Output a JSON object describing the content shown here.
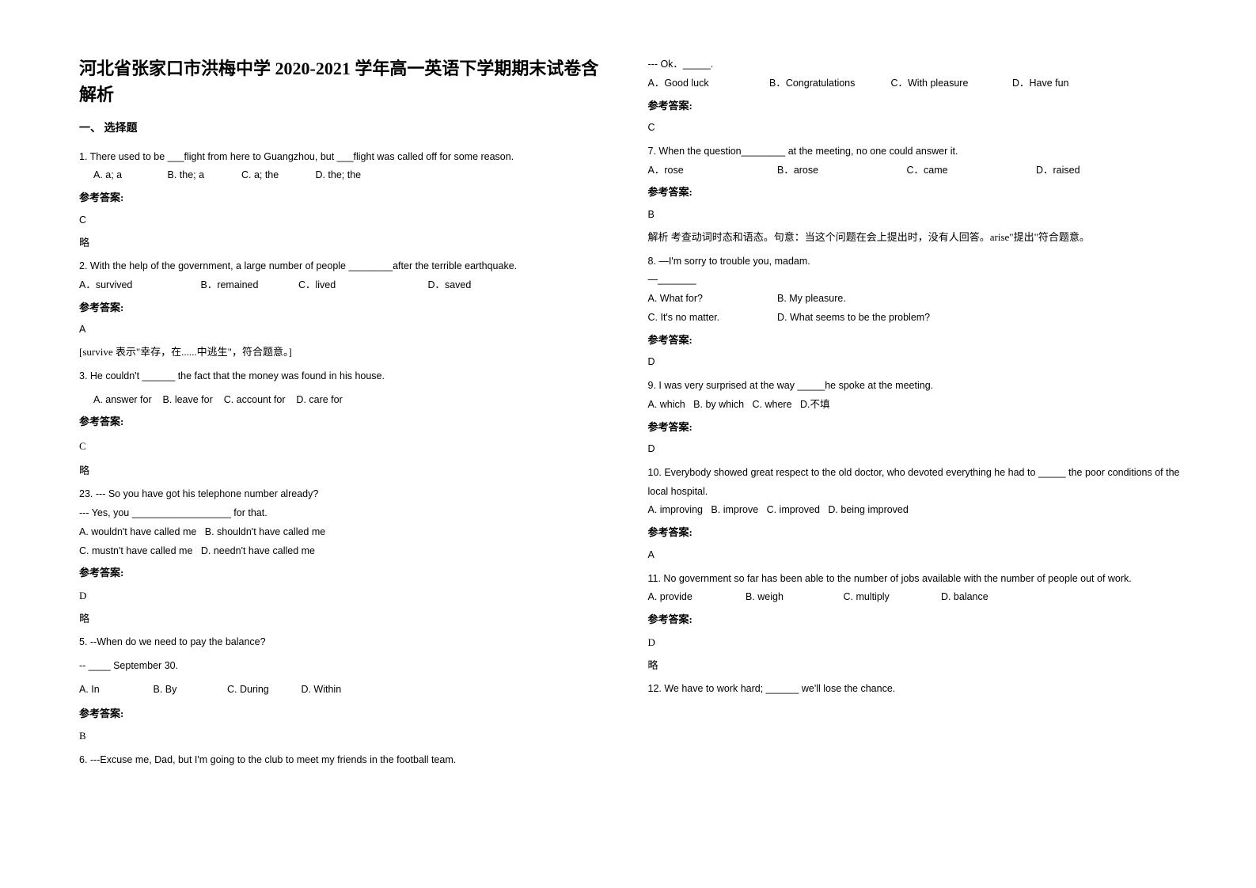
{
  "title": "河北省张家口市洪梅中学 2020-2021 学年高一英语下学期期末试卷含解析",
  "section1": "一、 选择题",
  "answerLabel": "参考答案:",
  "omit": "略",
  "q1": {
    "stem": "1. There used to be ___flight from here to Guangzhou, but ___flight was called off for some reason.",
    "opts": [
      "A. a; a",
      "B. the; a",
      "C. a; the",
      "D. the; the"
    ],
    "ans": "C"
  },
  "q2": {
    "stem": "2. With the help of the government, a large number of people ________after the terrible earthquake.",
    "opts": [
      "A．survived",
      "B．remained",
      "C．lived",
      "D．saved"
    ],
    "ans": "A",
    "note": "[survive 表示\"幸存，在......中逃生\"，符合题意。]"
  },
  "q3": {
    "stem": "3. He couldn't ______ the fact that the money was found in his house.",
    "opts": [
      "A. answer for",
      "B. leave for",
      "C. account for",
      "D. care for"
    ],
    "ans": "C"
  },
  "q4": {
    "num": "23.",
    "line1": "--- So you have got his telephone number already?",
    "line2": "--- Yes, you __________________ for that.",
    "opts1": [
      "A. wouldn't have called me",
      "B. shouldn't have called me"
    ],
    "opts2": [
      "C. mustn't have called me",
      "D. needn't have called me"
    ],
    "ans": "D"
  },
  "q5": {
    "stem": "5. --When do we need to pay the balance?",
    "line2": "-- ____ September 30.",
    "opts": [
      "A. In",
      "B. By",
      "C. During",
      "D. Within"
    ],
    "ans": "B"
  },
  "q6": {
    "stem": "6. ---Excuse me, Dad, but I'm going to the club to meet my friends in the football team.",
    "line2": "--- Ok．_____.",
    "opts": [
      "A．Good luck",
      "B．Congratulations",
      "C．With pleasure",
      "D．Have fun"
    ],
    "ans": "C"
  },
  "q7": {
    "stem": "7. When the question________ at the meeting, no one could answer it.",
    "opts": [
      "A．rose",
      "B．arose",
      "C．came",
      "D．raised"
    ],
    "ans": "B",
    "note": "解析   考查动词时态和语态。句意：当这个问题在会上提出时，没有人回答。arise\"提出\"符合题意。"
  },
  "q8": {
    "stem": "8. —I'm sorry to trouble you, madam.",
    "line2": "—_______",
    "opts1": [
      "A. What for?",
      "B. My pleasure."
    ],
    "opts2": [
      "C. It's no matter.",
      "D. What seems to be the problem?"
    ],
    "ans": "D"
  },
  "q9": {
    "stem": "9. I was very surprised at the way _____he spoke at the meeting.",
    "opts": [
      "A. which",
      "B. by which",
      "C. where",
      "D.不填"
    ],
    "ans": "D"
  },
  "q10": {
    "stem": "10. Everybody showed great respect to the old doctor, who devoted everything he had to _____ the poor conditions of the local hospital.",
    "opts": [
      "A. improving",
      "B. improve",
      "C. improved",
      "D. being improved"
    ],
    "ans": "A"
  },
  "q11": {
    "stem": "11. No government so far has been able to   the number of jobs available with the number of people out of work.",
    "opts": [
      "A. provide",
      "B. weigh",
      "C. multiply",
      "D. balance"
    ],
    "ans": "D"
  },
  "q12": {
    "stem": "12. We have to work hard; ______ we'll lose the chance."
  }
}
